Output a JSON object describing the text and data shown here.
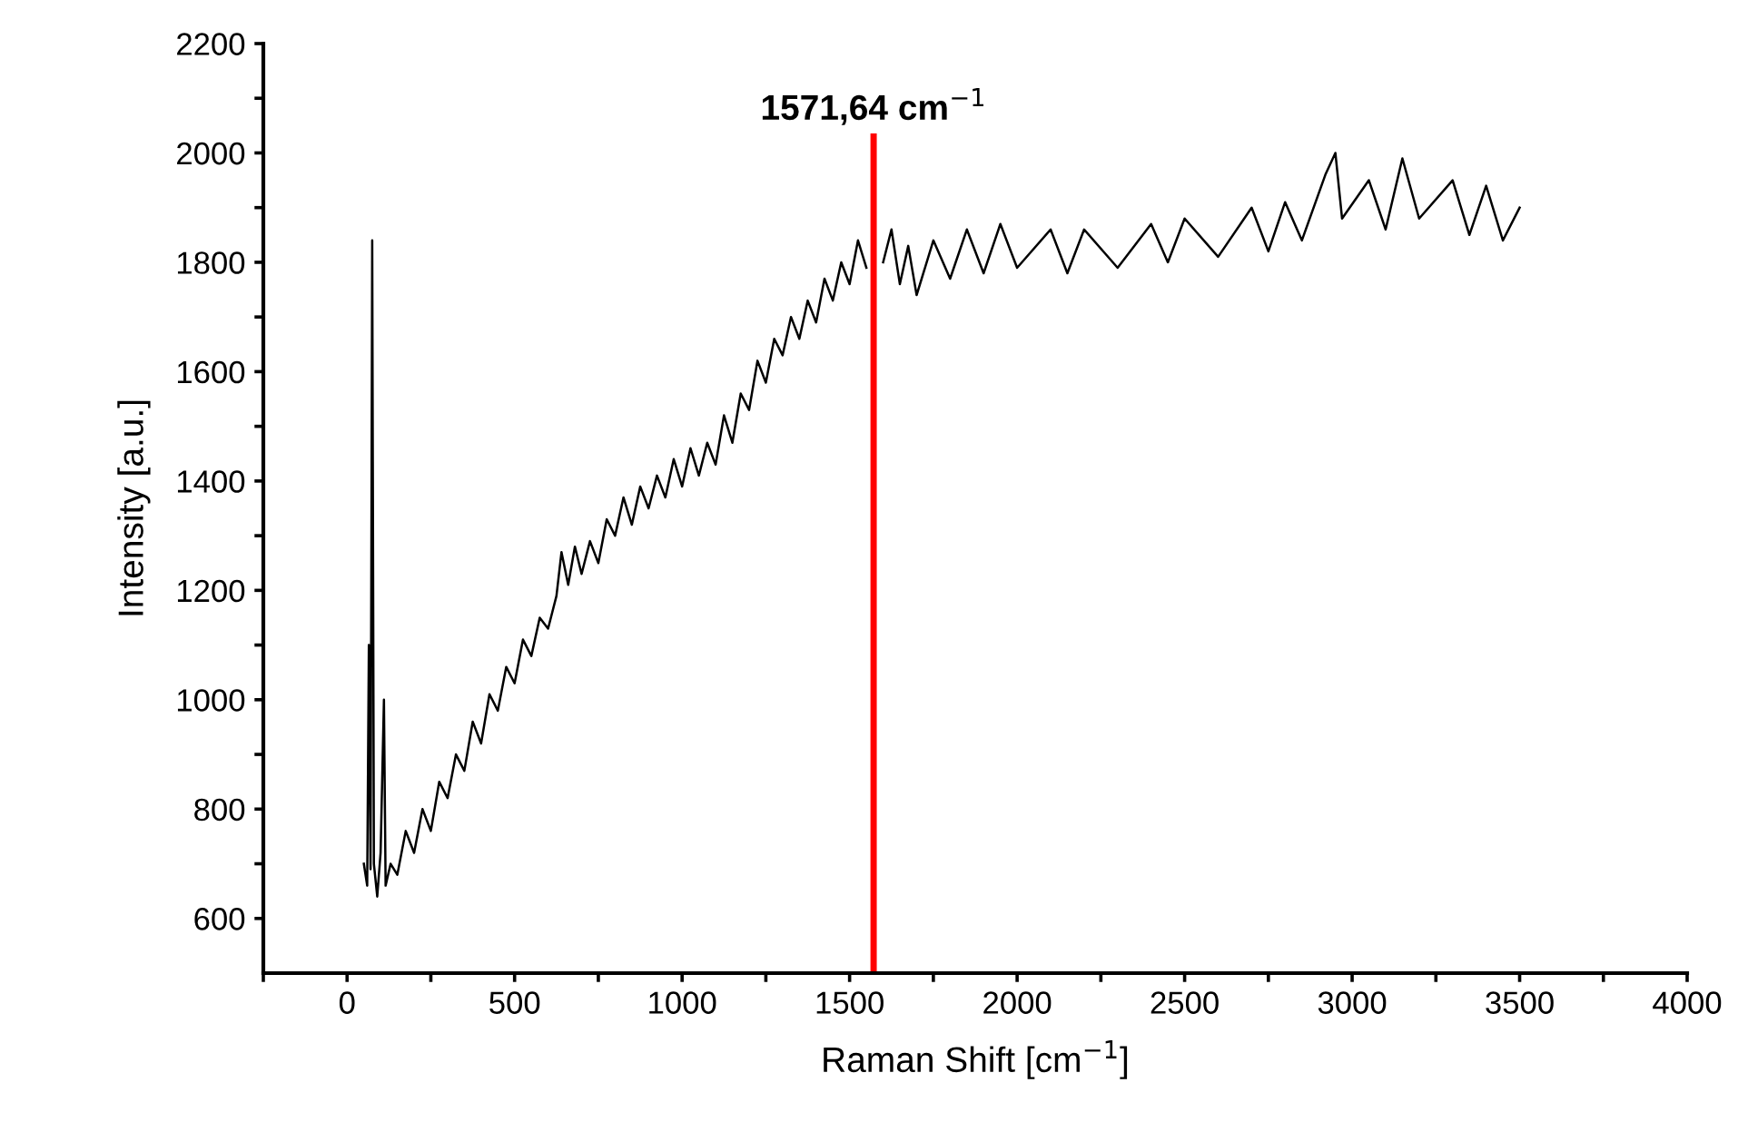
{
  "chart_data": {
    "type": "line",
    "xlabel": "Raman Shift [cm$^{−1}$]",
    "ylabel": "Intensity [a.u.]",
    "x": [
      50,
      60,
      65,
      70,
      75,
      80,
      90,
      100,
      110,
      115,
      130,
      150,
      175,
      200,
      225,
      250,
      275,
      300,
      325,
      350,
      375,
      400,
      425,
      450,
      475,
      500,
      525,
      550,
      575,
      600,
      625,
      640,
      660,
      680,
      700,
      725,
      750,
      775,
      800,
      825,
      850,
      875,
      900,
      925,
      950,
      975,
      1000,
      1025,
      1050,
      1075,
      1100,
      1125,
      1150,
      1175,
      1200,
      1225,
      1250,
      1275,
      1300,
      1325,
      1350,
      1375,
      1400,
      1425,
      1450,
      1475,
      1500,
      1525,
      1550,
      1575,
      1600,
      1625,
      1650,
      1675,
      1700,
      1750,
      1800,
      1850,
      1900,
      1950,
      2000,
      2100,
      2150,
      2200,
      2300,
      2400,
      2450,
      2500,
      2600,
      2700,
      2750,
      2800,
      2850,
      2920,
      2950,
      2970,
      3050,
      3100,
      3150,
      3200,
      3300,
      3350,
      3400,
      3450,
      3500
    ],
    "series": [
      {
        "color": "#000000",
        "values": [
          700,
          660,
          1100,
          690,
          1840,
          700,
          640,
          720,
          1000,
          660,
          700,
          680,
          760,
          720,
          800,
          760,
          850,
          820,
          900,
          870,
          960,
          920,
          1010,
          980,
          1060,
          1030,
          1110,
          1080,
          1150,
          1130,
          1190,
          1270,
          1210,
          1280,
          1230,
          1290,
          1250,
          1330,
          1300,
          1370,
          1320,
          1390,
          1350,
          1410,
          1370,
          1440,
          1390,
          1460,
          1410,
          1470,
          1430,
          1520,
          1470,
          1560,
          1530,
          1620,
          1580,
          1660,
          1630,
          1700,
          1660,
          1730,
          1690,
          1770,
          1730,
          1800,
          1760,
          1840,
          1790,
          null,
          1800,
          1860,
          1760,
          1830,
          1740,
          1840,
          1770,
          1860,
          1780,
          1870,
          1790,
          1860,
          1780,
          1860,
          1790,
          1870,
          1800,
          1880,
          1810,
          1900,
          1820,
          1910,
          1840,
          1960,
          2000,
          1880,
          1950,
          1860,
          1990,
          1880,
          1950,
          1850,
          1940,
          1840,
          1900
        ]
      }
    ],
    "xlim": [
      -250,
      4000
    ],
    "xticks": [
      {
        "value": -250,
        "label": null
      },
      0,
      {
        "value": 250,
        "label": null
      },
      500,
      {
        "value": 750,
        "label": null
      },
      1000,
      {
        "value": 1250,
        "label": null
      },
      1500,
      {
        "value": 1750,
        "label": null
      },
      2000,
      {
        "value": 2250,
        "label": null
      },
      2500,
      {
        "value": 2750,
        "label": null
      },
      3000,
      {
        "value": 3250,
        "label": null
      },
      3500,
      {
        "value": 3750,
        "label": null
      },
      4000
    ],
    "ylim": [
      500,
      2200
    ],
    "yticks": [
      600,
      {
        "value": 700,
        "label": null
      },
      800,
      {
        "value": 900,
        "label": null
      },
      1000,
      {
        "value": 1100,
        "label": null
      },
      1200,
      {
        "value": 1300,
        "label": null
      },
      1400,
      {
        "value": 1500,
        "label": null
      },
      1600,
      {
        "value": 1700,
        "label": null
      },
      1800,
      {
        "value": 1900,
        "label": null
      },
      2000,
      {
        "value": 2100,
        "label": null
      },
      2200
    ],
    "ref_lines": [
      {
        "axis": "x",
        "value": 1571.64,
        "label": "1571,64 cm$^{−1}$",
        "color": "#ff0000"
      }
    ],
    "grid": false,
    "legend": false,
    "marker": "none",
    "line_style": "solid"
  }
}
